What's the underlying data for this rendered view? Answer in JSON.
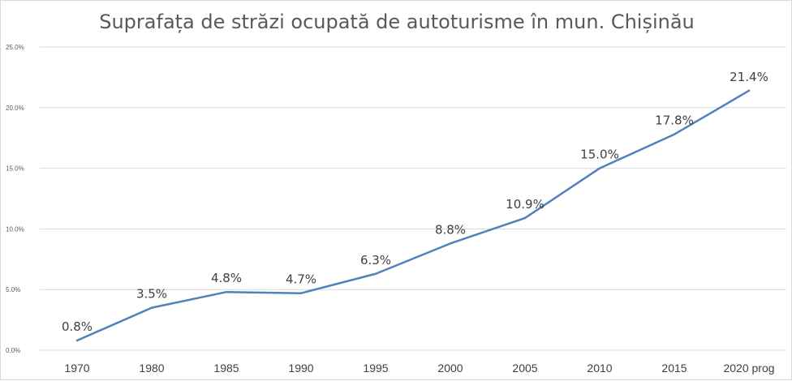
{
  "chart_data": {
    "type": "line",
    "title": "Suprafața de străzi ocupată de autoturisme în mun. Chișinău",
    "xlabel": "",
    "ylabel": "",
    "categories": [
      "1970",
      "1980",
      "1985",
      "1990",
      "1995",
      "2000",
      "2005",
      "2010",
      "2015",
      "2020 prog"
    ],
    "series": [
      {
        "values": [
          0.8,
          3.5,
          4.8,
          4.7,
          6.3,
          8.8,
          10.9,
          15.0,
          17.8,
          21.4
        ],
        "data_labels": [
          "0.8%",
          "3.5%",
          "4.8%",
          "4.7%",
          "6.3%",
          "8.8%",
          "10.9%",
          "15.0%",
          "17.8%",
          "21.4%"
        ],
        "color": "#4f81bd"
      }
    ],
    "ylim": [
      0,
      25
    ],
    "yticks": [
      0,
      5,
      10,
      15,
      20,
      25
    ],
    "ytick_labels": [
      "0.0%",
      "5.0%",
      "10.0%",
      "15.0%",
      "20.0%",
      "25.0%"
    ],
    "grid": true,
    "legend": "none",
    "gridline_color": "#d9d9d9"
  }
}
